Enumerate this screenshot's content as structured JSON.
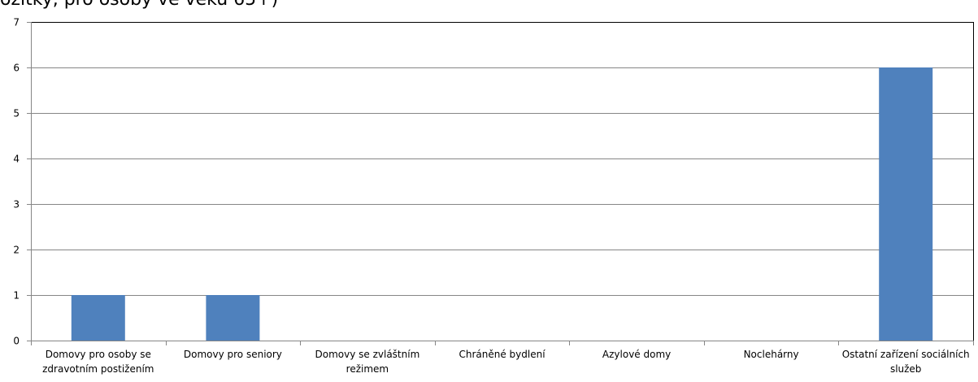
{
  "header_fragment": "ožitky, pro osoby ve věku 65+)",
  "chart_data": {
    "type": "bar",
    "title": "",
    "xlabel": "",
    "ylabel": "",
    "categories": [
      [
        "Domovy pro osoby se",
        "zdravotním postižením"
      ],
      [
        "Domovy pro seniory"
      ],
      [
        "Domovy se zvláštním",
        "režimem"
      ],
      [
        "Chráněné bydlení"
      ],
      [
        "Azylové domy"
      ],
      [
        "Noclehárny"
      ],
      [
        "Ostatní zařízení sociálních",
        "služeb"
      ]
    ],
    "values": [
      1,
      1,
      0,
      0,
      0,
      0,
      6
    ],
    "ylim": [
      0,
      7
    ],
    "yticks": [
      0,
      1,
      2,
      3,
      4,
      5,
      6,
      7
    ],
    "grid": true,
    "legend": "none",
    "colors": {
      "bar": "#4f81bd",
      "grid": "#868686",
      "axis": "#868686",
      "plot_border": "#000000"
    }
  }
}
